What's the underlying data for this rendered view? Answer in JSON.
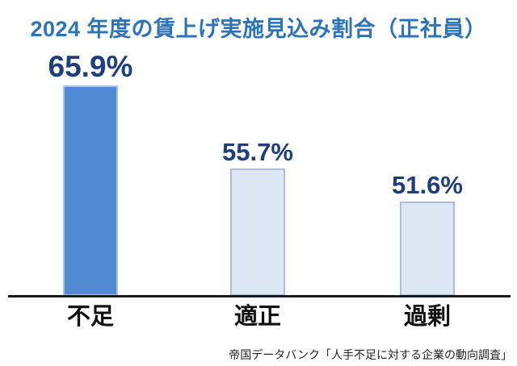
{
  "chart_data": {
    "type": "bar",
    "title": "2024 年度の賃上げ実施見込み割合（正社員）",
    "categories": [
      "不足",
      "適正",
      "過剰"
    ],
    "values": [
      65.9,
      55.7,
      51.6
    ],
    "value_labels": [
      "65.9%",
      "55.7%",
      "51.6%"
    ],
    "xlabel": "",
    "ylabel": "",
    "ylim": [
      40,
      67
    ],
    "grid": false,
    "legend": false,
    "highlight_category": "不足"
  },
  "source_note": "帝国データバンク「人手不足に対する企業の動向調査」",
  "colors": {
    "background": "#ffffff",
    "title_text": "#2c73b8",
    "value_label_text": "#1f3f7c",
    "bar_highlight_fill": "#5289d3",
    "bar_highlight_border": "#a9c3e3",
    "bar_default_fill": "#dde7f3",
    "bar_default_border": "#a8c0dd",
    "axis_line": "#1a1a1a",
    "category_text": "#111111",
    "source_text": "#222222"
  }
}
